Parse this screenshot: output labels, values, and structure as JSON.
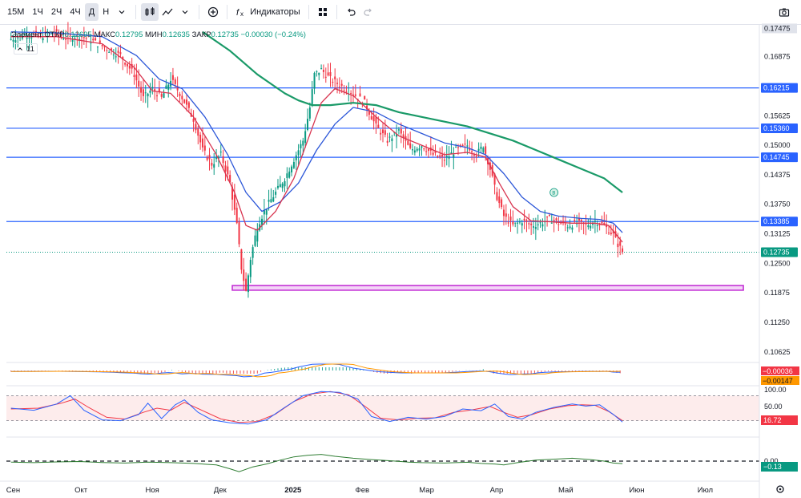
{
  "toolbar": {
    "timeframes": [
      "15M",
      "1Ч",
      "2Ч",
      "4Ч",
      "Д",
      "Н"
    ],
    "active_timeframe": "Д",
    "indicators_label": "Индикаторы"
  },
  "legend": {
    "label": "Элемент",
    "open_label": "ОТКР",
    "open": "0.12695",
    "high_label": "МАКС",
    "high": "0.12795",
    "low_label": "МИН",
    "low": "0.12635",
    "close_label": "ЗАКР",
    "close": "0.12735",
    "change": "−0.00030 (−0.24%)",
    "indicator_count": "11"
  },
  "chart_data": {
    "type": "candlestick",
    "price_axis": {
      "ticks": [
        "0.17475",
        "0.16875",
        "0.16215",
        "0.15625",
        "0.15360",
        "0.15000",
        "0.14745",
        "0.14375",
        "0.13750",
        "0.13385",
        "0.13125",
        "0.12735",
        "0.12500",
        "0.11875",
        "0.11250",
        "0.10625"
      ],
      "ylim": [
        0.104,
        0.1755
      ]
    },
    "time_axis": {
      "labels": [
        {
          "label": "Сен",
          "day": 0
        },
        {
          "label": "Окт",
          "day": 30
        },
        {
          "label": "Ноя",
          "day": 61
        },
        {
          "label": "Дек",
          "day": 91
        },
        {
          "label": "2025",
          "day": 122
        },
        {
          "label": "Фев",
          "day": 153
        },
        {
          "label": "Мар",
          "day": 181
        },
        {
          "label": "Апр",
          "day": 212
        },
        {
          "label": "Май",
          "day": 242
        },
        {
          "label": "Июн",
          "day": 273
        },
        {
          "label": "Июл",
          "day": 303
        }
      ],
      "range_days": [
        -2,
        328
      ]
    },
    "horizontal_lines": [
      {
        "price": 0.16215,
        "label": "0.16215",
        "color": "#2962ff"
      },
      {
        "price": 0.1536,
        "label": "0.15360",
        "color": "#2962ff"
      },
      {
        "price": 0.14745,
        "label": "0.14745",
        "color": "#2962ff"
      },
      {
        "price": 0.13385,
        "label": "0.13385",
        "color": "#2962ff"
      }
    ],
    "last_price": {
      "price": 0.12735,
      "label": "0.12735",
      "color": "#089981"
    },
    "support_zone": {
      "price_top": 0.1203,
      "price_bottom": 0.1193,
      "day_start": 97,
      "day_end": 321,
      "color": "#c026d3"
    },
    "price_path": [
      [
        0,
        0.1725
      ],
      [
        6,
        0.1735
      ],
      [
        12,
        0.173
      ],
      [
        18,
        0.1738
      ],
      [
        24,
        0.1728
      ],
      [
        30,
        0.1732
      ],
      [
        36,
        0.172
      ],
      [
        42,
        0.1705
      ],
      [
        48,
        0.169
      ],
      [
        54,
        0.165
      ],
      [
        58,
        0.16
      ],
      [
        62,
        0.162
      ],
      [
        66,
        0.16
      ],
      [
        70,
        0.164
      ],
      [
        74,
        0.161
      ],
      [
        80,
        0.1555
      ],
      [
        84,
        0.149
      ],
      [
        88,
        0.146
      ],
      [
        92,
        0.148
      ],
      [
        96,
        0.142
      ],
      [
        99,
        0.133
      ],
      [
        101,
        0.124
      ],
      [
        103,
        0.119
      ],
      [
        105,
        0.126
      ],
      [
        108,
        0.133
      ],
      [
        112,
        0.137
      ],
      [
        116,
        0.14
      ],
      [
        120,
        0.143
      ],
      [
        124,
        0.147
      ],
      [
        128,
        0.151
      ],
      [
        131,
        0.158
      ],
      [
        133,
        0.165
      ],
      [
        136,
        0.166
      ],
      [
        140,
        0.164
      ],
      [
        145,
        0.1625
      ],
      [
        150,
        0.161
      ],
      [
        155,
        0.159
      ],
      [
        160,
        0.154
      ],
      [
        165,
        0.151
      ],
      [
        170,
        0.153
      ],
      [
        175,
        0.149
      ],
      [
        180,
        0.15
      ],
      [
        185,
        0.148
      ],
      [
        190,
        0.147
      ],
      [
        195,
        0.149
      ],
      [
        200,
        0.15
      ],
      [
        204,
        0.148
      ],
      [
        207,
        0.15
      ],
      [
        210,
        0.145
      ],
      [
        213,
        0.139
      ],
      [
        216,
        0.135
      ],
      [
        220,
        0.133
      ],
      [
        224,
        0.134
      ],
      [
        228,
        0.133
      ],
      [
        232,
        0.1335
      ],
      [
        236,
        0.1345
      ],
      [
        240,
        0.1335
      ],
      [
        244,
        0.133
      ],
      [
        248,
        0.1335
      ],
      [
        252,
        0.133
      ],
      [
        256,
        0.134
      ],
      [
        260,
        0.133
      ],
      [
        264,
        0.131
      ],
      [
        266,
        0.129
      ],
      [
        268,
        0.1275
      ]
    ],
    "ma_fast_path": [
      [
        0,
        0.173
      ],
      [
        20,
        0.173
      ],
      [
        40,
        0.1715
      ],
      [
        54,
        0.1665
      ],
      [
        62,
        0.1615
      ],
      [
        70,
        0.161
      ],
      [
        80,
        0.156
      ],
      [
        90,
        0.148
      ],
      [
        98,
        0.14
      ],
      [
        103,
        0.133
      ],
      [
        108,
        0.132
      ],
      [
        116,
        0.136
      ],
      [
        124,
        0.143
      ],
      [
        130,
        0.151
      ],
      [
        136,
        0.159
      ],
      [
        142,
        0.162
      ],
      [
        150,
        0.1605
      ],
      [
        160,
        0.156
      ],
      [
        170,
        0.152
      ],
      [
        180,
        0.15
      ],
      [
        190,
        0.148
      ],
      [
        200,
        0.1485
      ],
      [
        208,
        0.1475
      ],
      [
        214,
        0.142
      ],
      [
        220,
        0.137
      ],
      [
        228,
        0.134
      ],
      [
        236,
        0.1338
      ],
      [
        246,
        0.1335
      ],
      [
        256,
        0.1335
      ],
      [
        262,
        0.133
      ],
      [
        268,
        0.1295
      ]
    ],
    "ma_mid_path": [
      [
        0,
        0.174
      ],
      [
        20,
        0.1738
      ],
      [
        40,
        0.173
      ],
      [
        55,
        0.169
      ],
      [
        65,
        0.164
      ],
      [
        75,
        0.162
      ],
      [
        85,
        0.156
      ],
      [
        95,
        0.148
      ],
      [
        103,
        0.14
      ],
      [
        110,
        0.136
      ],
      [
        118,
        0.138
      ],
      [
        126,
        0.142
      ],
      [
        134,
        0.149
      ],
      [
        142,
        0.1545
      ],
      [
        150,
        0.158
      ],
      [
        160,
        0.157
      ],
      [
        170,
        0.1545
      ],
      [
        180,
        0.1525
      ],
      [
        190,
        0.1505
      ],
      [
        200,
        0.1495
      ],
      [
        208,
        0.148
      ],
      [
        216,
        0.144
      ],
      [
        224,
        0.139
      ],
      [
        232,
        0.136
      ],
      [
        240,
        0.135
      ],
      [
        250,
        0.1345
      ],
      [
        258,
        0.1343
      ],
      [
        264,
        0.1335
      ],
      [
        268,
        0.1315
      ]
    ],
    "ma_slow_path": [
      [
        84,
        0.174
      ],
      [
        90,
        0.172
      ],
      [
        96,
        0.17
      ],
      [
        102,
        0.1675
      ],
      [
        108,
        0.165
      ],
      [
        114,
        0.163
      ],
      [
        120,
        0.161
      ],
      [
        126,
        0.1595
      ],
      [
        132,
        0.1585
      ],
      [
        140,
        0.1585
      ],
      [
        150,
        0.159
      ],
      [
        160,
        0.1585
      ],
      [
        170,
        0.157
      ],
      [
        180,
        0.156
      ],
      [
        190,
        0.155
      ],
      [
        200,
        0.154
      ],
      [
        210,
        0.1525
      ],
      [
        220,
        0.151
      ],
      [
        230,
        0.149
      ],
      [
        240,
        0.147
      ],
      [
        250,
        0.145
      ],
      [
        260,
        0.143
      ],
      [
        268,
        0.14
      ]
    ],
    "marker": {
      "day": 238,
      "price": 0.14,
      "label": "B"
    },
    "macd_pane": {
      "labels": [
        {
          "value": "−0.00036",
          "color": "#f23645"
        },
        {
          "value": "−0.00147",
          "color": "#ff9800"
        }
      ]
    },
    "stoch_pane": {
      "ticks": [
        "100.00",
        "50.00"
      ],
      "value_label": "16.72",
      "levels": [
        80,
        20
      ],
      "k_path": [
        [
          0,
          50
        ],
        [
          10,
          45
        ],
        [
          20,
          60
        ],
        [
          26,
          80
        ],
        [
          32,
          45
        ],
        [
          40,
          22
        ],
        [
          48,
          20
        ],
        [
          56,
          35
        ],
        [
          60,
          62
        ],
        [
          66,
          25
        ],
        [
          72,
          58
        ],
        [
          76,
          70
        ],
        [
          82,
          40
        ],
        [
          88,
          22
        ],
        [
          96,
          15
        ],
        [
          104,
          12
        ],
        [
          112,
          22
        ],
        [
          120,
          52
        ],
        [
          128,
          80
        ],
        [
          136,
          90
        ],
        [
          144,
          88
        ],
        [
          152,
          72
        ],
        [
          158,
          30
        ],
        [
          166,
          18
        ],
        [
          174,
          28
        ],
        [
          182,
          24
        ],
        [
          190,
          30
        ],
        [
          198,
          48
        ],
        [
          206,
          44
        ],
        [
          212,
          60
        ],
        [
          218,
          30
        ],
        [
          224,
          24
        ],
        [
          230,
          40
        ],
        [
          238,
          52
        ],
        [
          246,
          60
        ],
        [
          252,
          55
        ],
        [
          258,
          58
        ],
        [
          264,
          35
        ],
        [
          268,
          17
        ]
      ],
      "d_path": [
        [
          0,
          48
        ],
        [
          12,
          50
        ],
        [
          22,
          62
        ],
        [
          28,
          72
        ],
        [
          34,
          52
        ],
        [
          42,
          28
        ],
        [
          50,
          24
        ],
        [
          58,
          40
        ],
        [
          64,
          50
        ],
        [
          70,
          45
        ],
        [
          76,
          64
        ],
        [
          84,
          44
        ],
        [
          92,
          24
        ],
        [
          100,
          16
        ],
        [
          108,
          18
        ],
        [
          116,
          36
        ],
        [
          124,
          66
        ],
        [
          132,
          84
        ],
        [
          140,
          90
        ],
        [
          148,
          82
        ],
        [
          155,
          55
        ],
        [
          162,
          26
        ],
        [
          170,
          22
        ],
        [
          178,
          26
        ],
        [
          186,
          27
        ],
        [
          194,
          40
        ],
        [
          202,
          46
        ],
        [
          210,
          54
        ],
        [
          216,
          40
        ],
        [
          222,
          28
        ],
        [
          228,
          34
        ],
        [
          236,
          48
        ],
        [
          244,
          56
        ],
        [
          250,
          58
        ],
        [
          256,
          57
        ],
        [
          262,
          42
        ],
        [
          268,
          20
        ]
      ]
    },
    "osc_pane": {
      "ticks": [
        "0.00"
      ],
      "value_label": "−0.13",
      "path": [
        [
          0,
          -0.05
        ],
        [
          10,
          -0.08
        ],
        [
          20,
          -0.04
        ],
        [
          30,
          -0.02
        ],
        [
          40,
          -0.07
        ],
        [
          50,
          -0.1
        ],
        [
          60,
          -0.05
        ],
        [
          70,
          -0.08
        ],
        [
          80,
          -0.12
        ],
        [
          90,
          -0.2
        ],
        [
          96,
          -0.4
        ],
        [
          100,
          -0.55
        ],
        [
          106,
          -0.3
        ],
        [
          112,
          -0.15
        ],
        [
          118,
          0.05
        ],
        [
          124,
          0.22
        ],
        [
          130,
          0.3
        ],
        [
          136,
          0.35
        ],
        [
          142,
          0.25
        ],
        [
          150,
          0.15
        ],
        [
          158,
          0.08
        ],
        [
          166,
          0.02
        ],
        [
          174,
          -0.05
        ],
        [
          180,
          -0.08
        ],
        [
          190,
          -0.1
        ],
        [
          200,
          -0.06
        ],
        [
          206,
          -0.12
        ],
        [
          212,
          -0.15
        ],
        [
          216,
          -0.2
        ],
        [
          222,
          -0.08
        ],
        [
          230,
          0.05
        ],
        [
          238,
          0.1
        ],
        [
          246,
          0.15
        ],
        [
          254,
          0.08
        ],
        [
          260,
          0.0
        ],
        [
          264,
          -0.1
        ],
        [
          268,
          -0.13
        ]
      ]
    }
  }
}
